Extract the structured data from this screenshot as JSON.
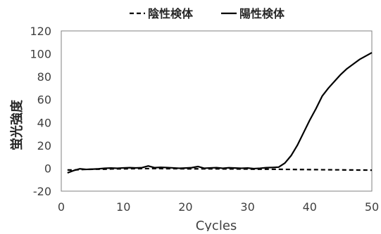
{
  "chart_data": {
    "type": "line",
    "title": "",
    "xlabel": "Cycles",
    "ylabel": "蛍光強度",
    "xlim": [
      0,
      50
    ],
    "ylim": [
      -20,
      120
    ],
    "x_ticks": [
      0,
      10,
      20,
      30,
      40,
      50
    ],
    "y_ticks": [
      -20,
      0,
      20,
      40,
      60,
      80,
      100,
      120
    ],
    "grid": false,
    "legend_position": "top",
    "colors": {
      "negative": "#000000",
      "positive": "#000000",
      "axis": "#404040",
      "frame": "#808080"
    },
    "series": [
      {
        "name": "陰性検体",
        "style": "dashed",
        "x": [
          1,
          2,
          3,
          4,
          5,
          6,
          7,
          8,
          9,
          10,
          11,
          12,
          13,
          14,
          15,
          16,
          17,
          18,
          19,
          20,
          21,
          22,
          23,
          24,
          25,
          26,
          27,
          28,
          29,
          30,
          31,
          32,
          33,
          34,
          35,
          36,
          37,
          38,
          39,
          40,
          41,
          42,
          43,
          44,
          45,
          46,
          47,
          48,
          49,
          50
        ],
        "y": [
          -1.5,
          -1.5,
          -1.2,
          -1.0,
          -0.9,
          -0.8,
          -0.8,
          -0.6,
          -0.5,
          -0.5,
          -0.4,
          -0.4,
          -0.3,
          -0.3,
          -0.3,
          -0.3,
          -0.4,
          -0.4,
          -0.4,
          -0.5,
          -0.5,
          -0.5,
          -0.5,
          -0.5,
          -0.5,
          -0.6,
          -0.6,
          -0.6,
          -0.7,
          -0.7,
          -0.8,
          -0.8,
          -0.8,
          -0.9,
          -0.9,
          -1.0,
          -1.0,
          -1.1,
          -1.1,
          -1.2,
          -1.2,
          -1.3,
          -1.3,
          -1.4,
          -1.4,
          -1.5,
          -1.5,
          -1.6,
          -1.6,
          -1.7
        ]
      },
      {
        "name": "陽性検体",
        "style": "solid",
        "x": [
          1,
          2,
          3,
          4,
          5,
          6,
          7,
          8,
          9,
          10,
          11,
          12,
          13,
          14,
          15,
          16,
          17,
          18,
          19,
          20,
          21,
          22,
          23,
          24,
          25,
          26,
          27,
          28,
          29,
          30,
          31,
          32,
          33,
          34,
          35,
          36,
          37,
          38,
          39,
          40,
          41,
          42,
          43,
          44,
          45,
          46,
          47,
          48,
          49,
          50
        ],
        "y": [
          -4.0,
          -2.0,
          -0.5,
          -1.0,
          -0.8,
          -0.5,
          0.0,
          0.2,
          0.0,
          0.3,
          0.5,
          0.3,
          0.5,
          2.0,
          0.5,
          0.8,
          0.6,
          0.3,
          0.0,
          0.2,
          0.5,
          1.5,
          0.0,
          0.3,
          0.5,
          0.0,
          0.4,
          0.2,
          0.0,
          0.2,
          -0.3,
          0.0,
          0.5,
          0.7,
          1.0,
          4.5,
          11.0,
          20.0,
          31.0,
          42.0,
          52.0,
          63.0,
          70.0,
          76.0,
          82.0,
          87.0,
          91.0,
          95.0,
          98.0,
          101.0
        ]
      }
    ]
  }
}
